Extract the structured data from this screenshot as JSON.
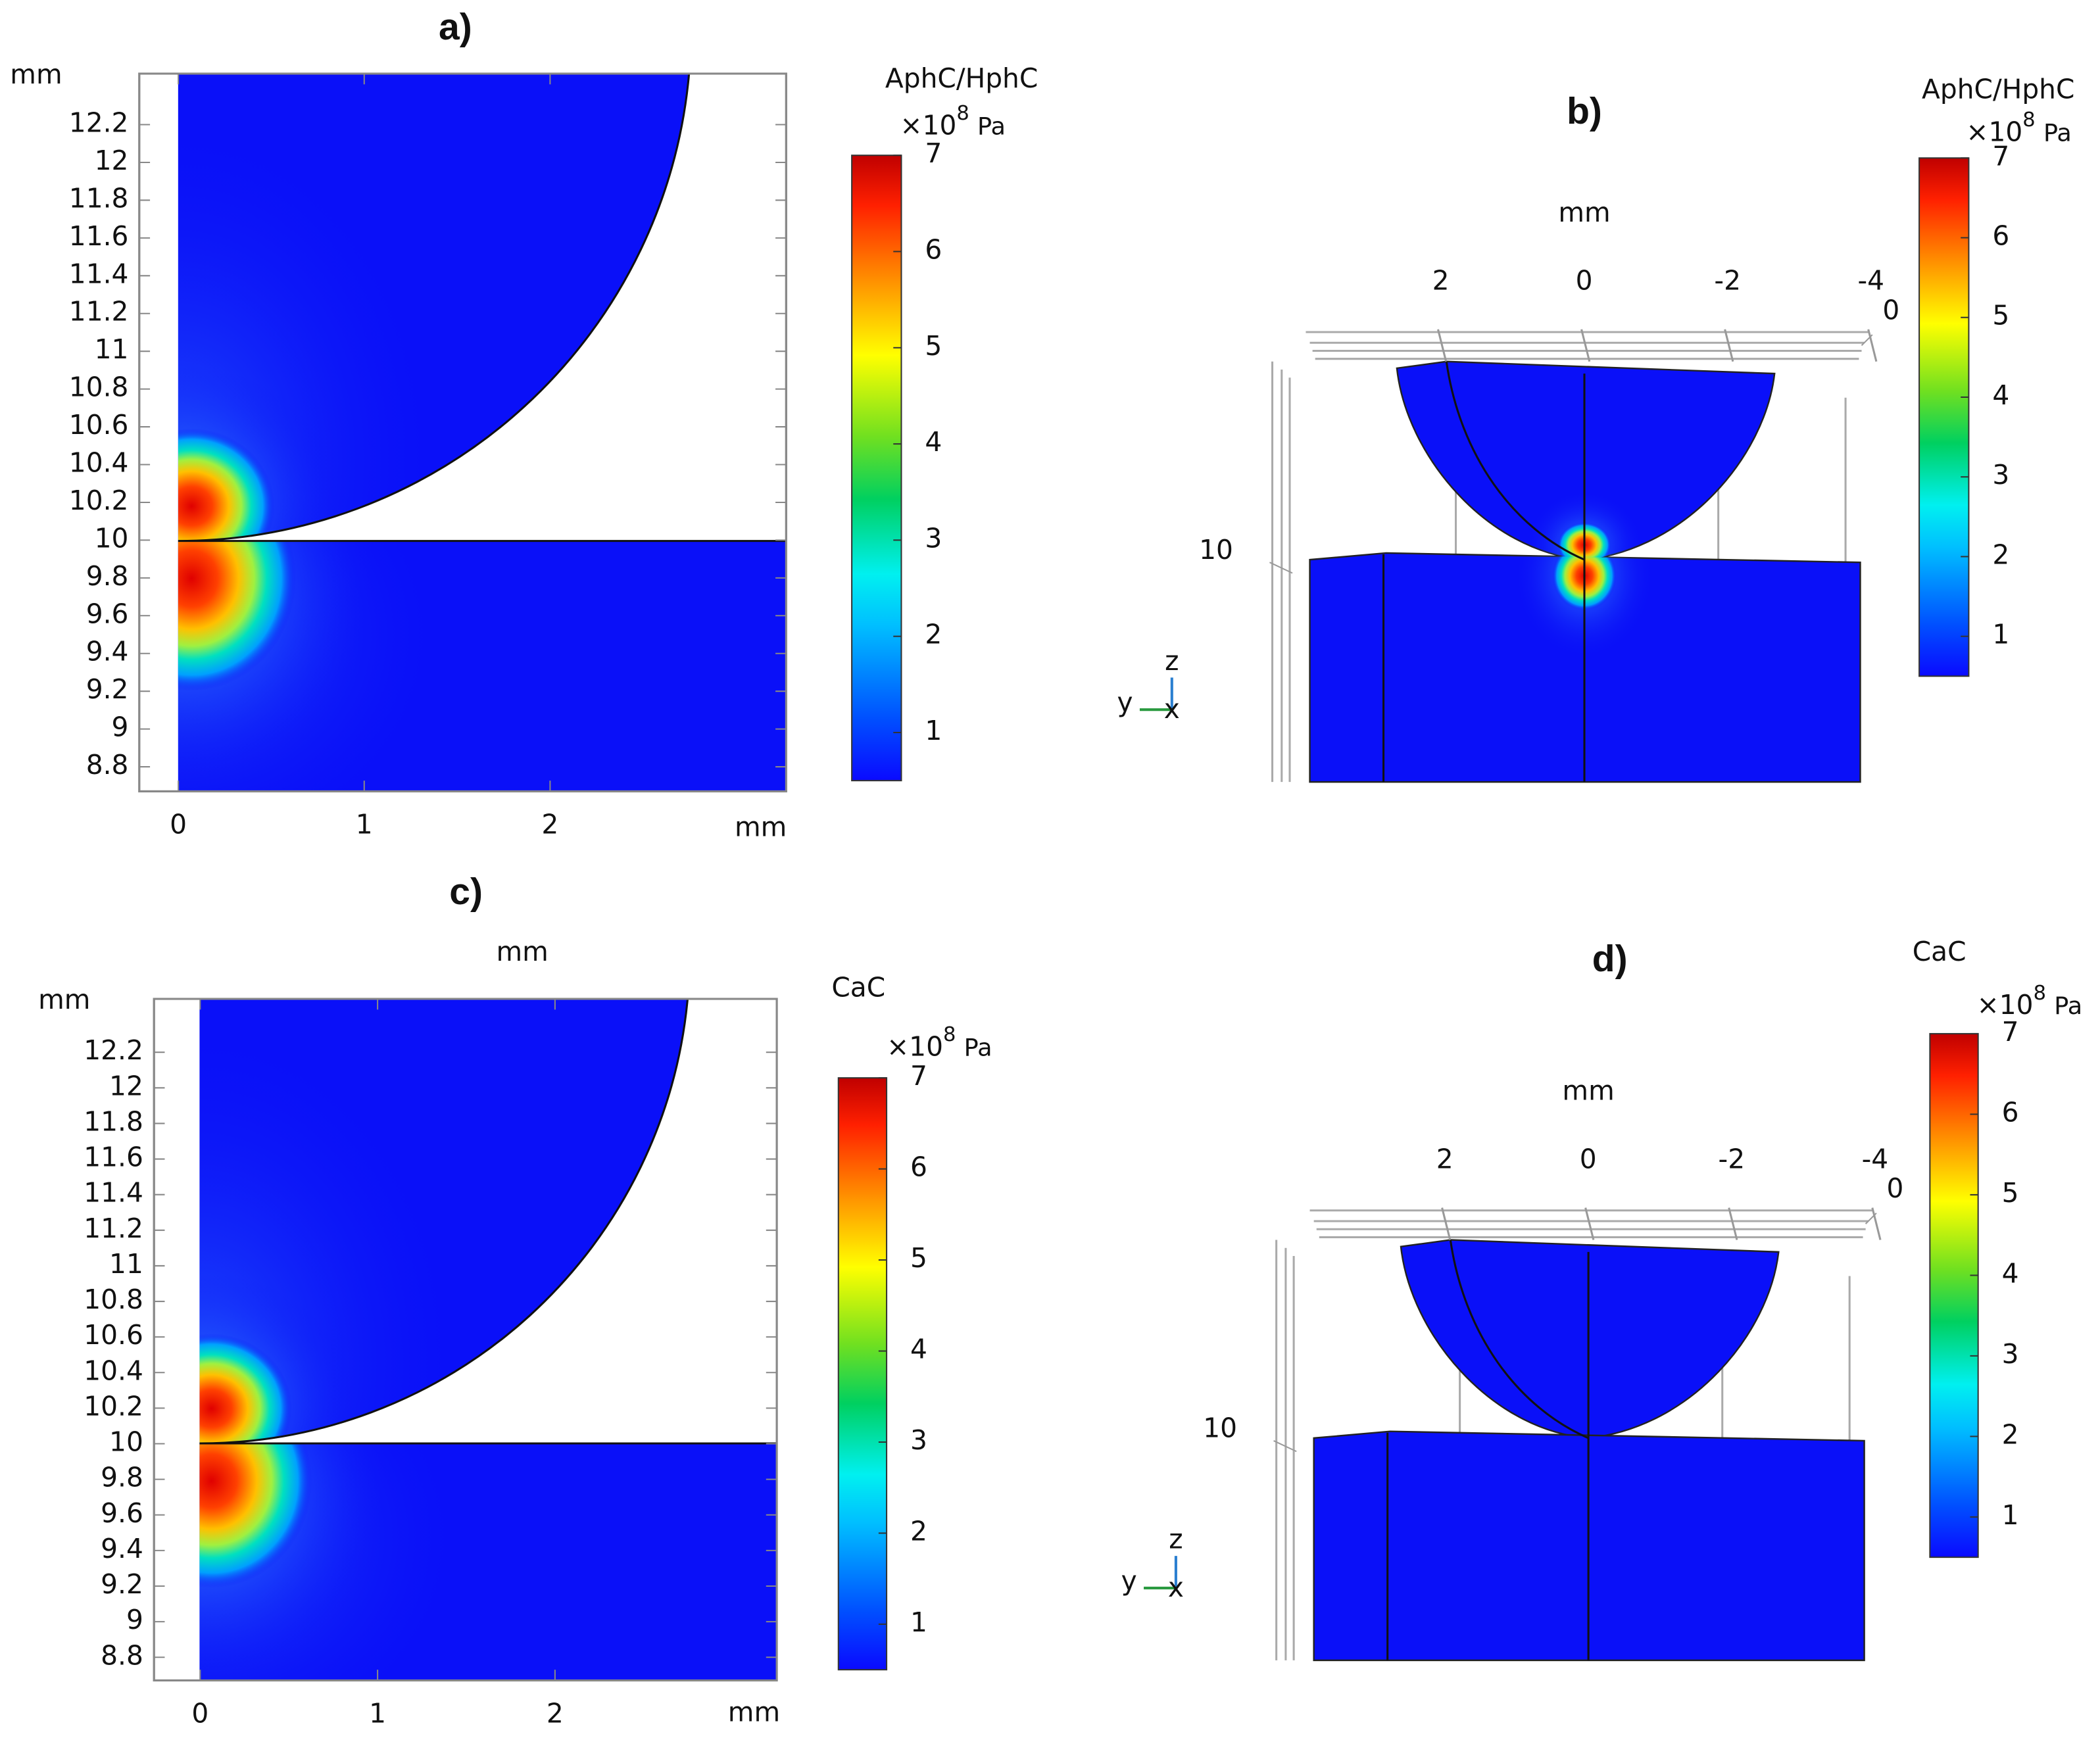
{
  "chart_data": [
    {
      "type": "contour",
      "title": "a)",
      "x_label": "mm",
      "y_label": "mm",
      "xlim": [
        -0.21,
        3.27
      ],
      "ylim": [
        8.67,
        12.47
      ],
      "xticks": [
        0,
        1,
        2
      ],
      "yticks": [
        8.8,
        9,
        9.2,
        9.4,
        9.6,
        9.8,
        10,
        10.2,
        10.4,
        10.6,
        10.8,
        11,
        11.2,
        11.4,
        11.6,
        11.8,
        12,
        12.2
      ],
      "colorbar": {
        "title": "AphC/HphC",
        "multiplier": "×10",
        "exponent": "8",
        "unit": "Pa",
        "lim": [
          0.5,
          7
        ],
        "ticks": [
          1,
          2,
          3,
          4,
          5,
          6,
          7
        ]
      }
    },
    {
      "type": "3d",
      "title": "b)",
      "x_label": "mm",
      "xlim": [
        3.9,
        -4
      ],
      "xticks": [
        2,
        0,
        -2,
        -4
      ],
      "yticks": [
        0
      ],
      "zticks": [
        10
      ],
      "triad": {
        "z": "z",
        "y": "y",
        "x": "x"
      },
      "colorbar": {
        "title": "AphC/HphC",
        "multiplier": "×10",
        "exponent": "8",
        "unit": "Pa",
        "lim": [
          0.5,
          7
        ],
        "ticks": [
          1,
          2,
          3,
          4,
          5,
          6,
          7
        ]
      }
    },
    {
      "type": "contour",
      "title": "c)",
      "top_label": "mm",
      "x_label": "mm",
      "y_label": "mm",
      "xlim": [
        -0.26,
        3.25
      ],
      "ylim": [
        8.67,
        12.5
      ],
      "xticks": [
        0,
        1,
        2
      ],
      "yticks": [
        8.8,
        9,
        9.2,
        9.4,
        9.6,
        9.8,
        10,
        10.2,
        10.4,
        10.6,
        10.8,
        11,
        11.2,
        11.4,
        11.6,
        11.8,
        12,
        12.2
      ],
      "colorbar": {
        "title": "CaC",
        "multiplier": "×10",
        "exponent": "8",
        "unit": "Pa",
        "lim": [
          0.5,
          7
        ],
        "ticks": [
          1,
          2,
          3,
          4,
          5,
          6,
          7
        ]
      }
    },
    {
      "type": "3d",
      "title": "d)",
      "x_label": "mm",
      "xlim": [
        3.9,
        -4
      ],
      "xticks": [
        2,
        0,
        -2,
        -4
      ],
      "yticks": [
        0
      ],
      "zticks": [
        10
      ],
      "triad": {
        "z": "z",
        "y": "y",
        "x": "x"
      },
      "colorbar": {
        "title": "CaC",
        "multiplier": "×10",
        "exponent": "8",
        "unit": "Pa",
        "lim": [
          0.5,
          7
        ],
        "ticks": [
          1,
          2,
          3,
          4,
          5,
          6,
          7
        ]
      }
    }
  ]
}
